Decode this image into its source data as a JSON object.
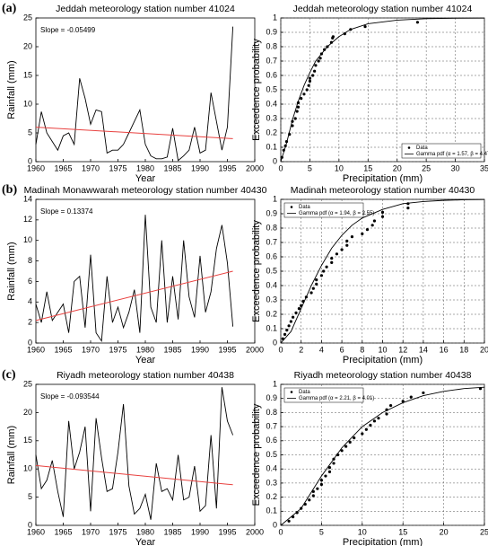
{
  "chart_data": [
    {
      "type": "line",
      "panel_label": "(a)",
      "title": "Jeddah meteorology station  number 41024",
      "x_label": "Year",
      "y_label": "Rainfall (mm)",
      "annotation": "Slope = -0.05499",
      "x": [
        1960,
        1961,
        1962,
        1963,
        1964,
        1965,
        1966,
        1967,
        1968,
        1969,
        1970,
        1971,
        1972,
        1973,
        1974,
        1975,
        1976,
        1977,
        1978,
        1979,
        1980,
        1981,
        1982,
        1983,
        1984,
        1985,
        1986,
        1987,
        1988,
        1989,
        1990,
        1991,
        1992,
        1993,
        1994,
        1995,
        1996
      ],
      "values": [
        3,
        8.7,
        5,
        3.5,
        2,
        4.5,
        5,
        3,
        14.5,
        11,
        6.5,
        9,
        8.7,
        1.5,
        2,
        2,
        3,
        5,
        7,
        9,
        3,
        1,
        0.5,
        0.5,
        0.8,
        5.8,
        0.2,
        1,
        2,
        6,
        1.5,
        2,
        12,
        7,
        2,
        6,
        23.5
      ],
      "color": "#000000",
      "trend": {
        "x": [
          1960,
          1996
        ],
        "values": [
          6.0,
          4.0
        ],
        "color": "#e8413f"
      },
      "xlim": [
        1960,
        2000
      ],
      "xticks": [
        1960,
        1965,
        1970,
        1975,
        1980,
        1985,
        1990,
        1995,
        2000
      ],
      "ylim": [
        0,
        25
      ],
      "yticks": [
        0,
        5,
        10,
        15,
        20,
        25
      ],
      "grid": false
    },
    {
      "type": "scatter",
      "title": "Jeddah meteorology station number 41024",
      "x_label": "Precipitation (mm)",
      "y_label": "Exceedence probability",
      "legend": "lower-right",
      "series": [
        {
          "name": "Data",
          "mode": "points",
          "color": "#000000",
          "x": [
            0.2,
            0.5,
            0.8,
            1,
            1.5,
            2,
            2,
            2.5,
            2.8,
            3,
            3,
            3.5,
            4,
            4.5,
            4.8,
            5,
            5,
            5.5,
            5.8,
            6,
            6.5,
            6.8,
            7,
            7.5,
            8,
            8.7,
            8.9,
            9,
            11,
            12,
            14.5,
            23.5
          ],
          "values": [
            0.03,
            0.08,
            0.11,
            0.14,
            0.19,
            0.25,
            0.28,
            0.3,
            0.35,
            0.38,
            0.41,
            0.44,
            0.47,
            0.5,
            0.53,
            0.56,
            0.58,
            0.6,
            0.63,
            0.67,
            0.7,
            0.72,
            0.75,
            0.78,
            0.8,
            0.83,
            0.86,
            0.87,
            0.89,
            0.92,
            0.94,
            0.97
          ]
        },
        {
          "name": "Gamma pdf (α = 1.57, β = 4.47)",
          "mode": "line",
          "color": "#000000",
          "x": [
            0,
            1,
            2,
            3,
            4,
            5,
            6,
            8,
            10,
            12,
            15,
            20,
            25,
            30,
            35
          ],
          "values": [
            0,
            0.13,
            0.29,
            0.42,
            0.53,
            0.62,
            0.7,
            0.8,
            0.87,
            0.92,
            0.96,
            0.985,
            0.995,
            0.998,
            0.999
          ]
        }
      ],
      "xlim": [
        0,
        35
      ],
      "xticks": [
        0,
        5,
        10,
        15,
        20,
        25,
        30,
        35
      ],
      "ylim": [
        0,
        1
      ],
      "yticks": [
        0,
        0.1,
        0.2,
        0.3,
        0.4,
        0.5,
        0.6,
        0.7,
        0.8,
        0.9,
        1
      ],
      "grid": true
    },
    {
      "type": "line",
      "panel_label": "(b)",
      "title": "Madinah Monawwarah meteorology station number 40430",
      "x_label": "Year",
      "y_label": "Rainfall (mm)",
      "annotation": "Slope = 0.13374",
      "x": [
        1960,
        1961,
        1962,
        1963,
        1964,
        1965,
        1966,
        1967,
        1968,
        1969,
        1970,
        1971,
        1972,
        1973,
        1974,
        1975,
        1976,
        1977,
        1978,
        1979,
        1980,
        1981,
        1982,
        1983,
        1984,
        1985,
        1986,
        1987,
        1988,
        1989,
        1990,
        1991,
        1992,
        1993,
        1994,
        1995,
        1996
      ],
      "values": [
        3.8,
        2,
        5,
        2.2,
        3,
        3.8,
        1,
        6,
        6.5,
        1.5,
        8.6,
        1,
        0.2,
        6.5,
        2,
        3.5,
        1.5,
        3,
        5.2,
        1,
        12.5,
        3.5,
        2,
        10,
        2,
        6.5,
        2.3,
        10,
        4.5,
        2.5,
        8.5,
        3,
        5,
        9.2,
        11.5,
        7.8,
        1.6
      ],
      "color": "#000000",
      "trend": {
        "x": [
          1960,
          1996
        ],
        "values": [
          2.2,
          7.0
        ],
        "color": "#e8413f"
      },
      "xlim": [
        1960,
        2000
      ],
      "xticks": [
        1960,
        1965,
        1970,
        1975,
        1980,
        1985,
        1990,
        1995,
        2000
      ],
      "ylim": [
        0,
        14
      ],
      "yticks": [
        0,
        2,
        4,
        6,
        8,
        10,
        12,
        14
      ],
      "grid": false
    },
    {
      "type": "scatter",
      "title": "Madinah meteorology station number 40430",
      "x_label": "Precipitation (mm)",
      "y_label": "Exceedence probability",
      "legend": "upper-left",
      "series": [
        {
          "name": "Data",
          "mode": "points",
          "color": "#000000",
          "x": [
            0.2,
            0.4,
            0.6,
            0.8,
            1,
            1.2,
            1.5,
            1.8,
            2,
            2.2,
            2.5,
            3,
            3.2,
            3.5,
            3.5,
            4,
            4.2,
            4.5,
            5,
            5,
            5.5,
            6,
            6.5,
            6.5,
            7,
            8,
            8.5,
            9,
            9.2,
            10,
            10,
            12.5,
            12.5
          ],
          "values": [
            0.03,
            0.06,
            0.09,
            0.12,
            0.15,
            0.18,
            0.21,
            0.24,
            0.26,
            0.29,
            0.32,
            0.35,
            0.38,
            0.41,
            0.44,
            0.47,
            0.5,
            0.53,
            0.56,
            0.59,
            0.62,
            0.65,
            0.68,
            0.71,
            0.74,
            0.76,
            0.79,
            0.82,
            0.85,
            0.88,
            0.91,
            0.94,
            0.97
          ]
        },
        {
          "name": "Gamma pdf (α = 1.94, β = 2.55)",
          "mode": "line",
          "color": "#000000",
          "x": [
            0,
            1,
            2,
            3,
            4,
            5,
            6,
            7,
            8,
            10,
            12,
            14,
            16,
            18,
            20
          ],
          "values": [
            0,
            0.08,
            0.24,
            0.4,
            0.54,
            0.66,
            0.75,
            0.82,
            0.87,
            0.93,
            0.97,
            0.985,
            0.993,
            0.997,
            0.999
          ]
        }
      ],
      "xlim": [
        0,
        20
      ],
      "xticks": [
        0,
        2,
        4,
        6,
        8,
        10,
        12,
        14,
        16,
        18,
        20
      ],
      "ylim": [
        0,
        1
      ],
      "yticks": [
        0,
        0.1,
        0.2,
        0.3,
        0.4,
        0.5,
        0.6,
        0.7,
        0.8,
        0.9,
        1
      ],
      "grid": true
    },
    {
      "type": "line",
      "panel_label": "(c)",
      "title": "Riyadh meteorology station number 40438",
      "x_label": "Year",
      "y_label": "Rainfall (mm)",
      "annotation": "Slope = -0.093544",
      "x": [
        1960,
        1961,
        1962,
        1963,
        1964,
        1965,
        1966,
        1967,
        1968,
        1969,
        1970,
        1971,
        1972,
        1973,
        1974,
        1975,
        1976,
        1977,
        1978,
        1979,
        1980,
        1981,
        1982,
        1983,
        1984,
        1985,
        1986,
        1987,
        1988,
        1989,
        1990,
        1991,
        1992,
        1993,
        1994,
        1995,
        1996
      ],
      "values": [
        12.5,
        6.5,
        8,
        11.5,
        6,
        1.5,
        18.5,
        10,
        13,
        17.5,
        2.5,
        19,
        12,
        6,
        6.5,
        13,
        21.5,
        7,
        2,
        3,
        5.5,
        1,
        11,
        6,
        6.5,
        4.5,
        12.5,
        4.5,
        5,
        10.5,
        2.5,
        3.5,
        16,
        3,
        24.5,
        18.5,
        16
      ],
      "color": "#000000",
      "trend": {
        "x": [
          1960,
          1996
        ],
        "values": [
          10.6,
          7.2
        ],
        "color": "#e8413f"
      },
      "xlim": [
        1960,
        2000
      ],
      "xticks": [
        1960,
        1965,
        1970,
        1975,
        1980,
        1985,
        1990,
        1995,
        2000
      ],
      "ylim": [
        0,
        25
      ],
      "yticks": [
        0,
        5,
        10,
        15,
        20,
        25
      ],
      "grid": false
    },
    {
      "type": "scatter",
      "title": "Riyadh meteorology station number 40438",
      "x_label": "Precipitation (mm)",
      "y_label": "Exceedence probability",
      "legend": "upper-left",
      "series": [
        {
          "name": "Data",
          "mode": "points",
          "color": "#000000",
          "x": [
            1,
            1.5,
            2,
            2.5,
            3,
            3.5,
            4,
            4,
            4.5,
            5,
            5,
            5.5,
            6,
            6,
            6.5,
            6.5,
            7,
            7.5,
            8,
            8.5,
            9,
            10,
            10.5,
            11,
            11.5,
            12,
            13,
            13,
            13.5,
            15,
            16,
            17.5,
            24.5
          ],
          "values": [
            0.03,
            0.06,
            0.09,
            0.12,
            0.15,
            0.18,
            0.21,
            0.24,
            0.26,
            0.29,
            0.32,
            0.35,
            0.38,
            0.41,
            0.44,
            0.47,
            0.5,
            0.53,
            0.56,
            0.59,
            0.62,
            0.65,
            0.68,
            0.71,
            0.74,
            0.76,
            0.79,
            0.82,
            0.85,
            0.88,
            0.91,
            0.94,
            0.97
          ]
        },
        {
          "name": "Gamma pdf (α = 2.21, β = 4.01)",
          "mode": "line",
          "color": "#000000",
          "x": [
            0,
            2.5,
            5,
            7.5,
            10,
            12.5,
            15,
            17.5,
            20,
            22.5,
            25
          ],
          "values": [
            0,
            0.12,
            0.35,
            0.55,
            0.7,
            0.8,
            0.87,
            0.92,
            0.95,
            0.97,
            0.98
          ]
        }
      ],
      "xlim": [
        0,
        25
      ],
      "xticks": [
        0,
        5,
        10,
        15,
        20,
        25
      ],
      "ylim": [
        0,
        1
      ],
      "yticks": [
        0,
        0.1,
        0.2,
        0.3,
        0.4,
        0.5,
        0.6,
        0.7,
        0.8,
        0.9,
        1
      ],
      "grid": true
    }
  ]
}
